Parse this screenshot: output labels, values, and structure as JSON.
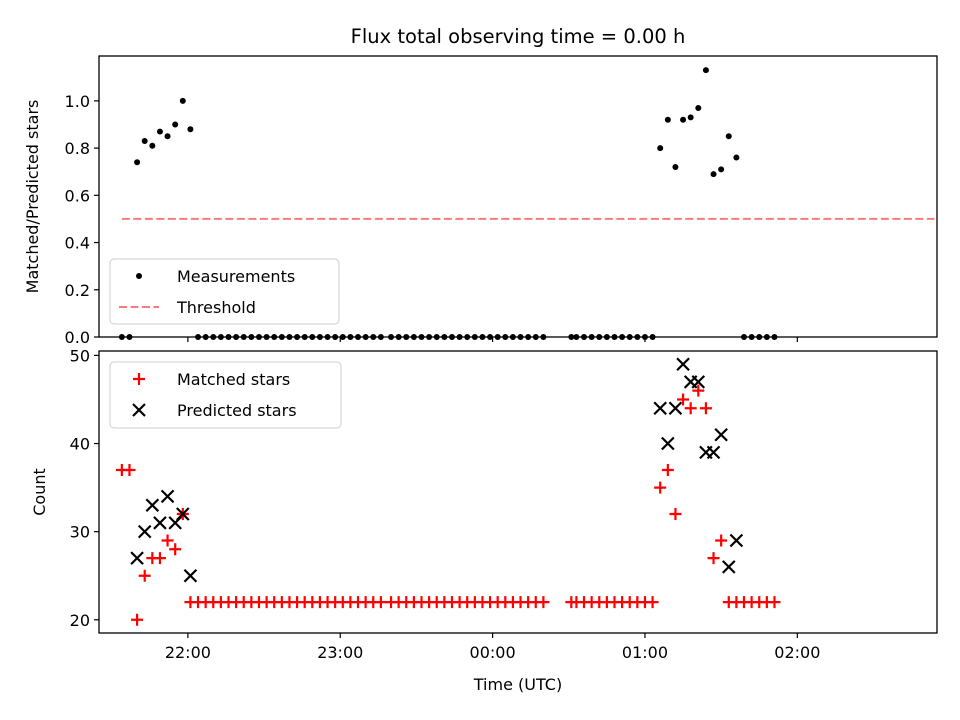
{
  "chart_data": [
    {
      "type": "scatter",
      "title": "Flux total observing time = 0.00 h",
      "xlabel": "",
      "ylabel": "Matched/Predicted stars",
      "ylim": [
        0.0,
        1.19
      ],
      "yticks": [
        "0.0",
        "0.2",
        "0.4",
        "0.6",
        "0.8",
        "1.0"
      ],
      "xlim": [
        "21:25",
        "02:55"
      ],
      "xticks": [
        "22:00",
        "23:00",
        "00:00",
        "01:00",
        "02:00"
      ],
      "legend": {
        "placement": "lower-left",
        "entries": [
          "Measurements",
          "Threshold"
        ]
      },
      "series": [
        {
          "name": "Measurements",
          "marker": "dot",
          "color": "#000000",
          "points": [
            [
              "21:34",
              0.0
            ],
            [
              "21:37",
              0.0
            ],
            [
              "21:40",
              0.74
            ],
            [
              "21:43",
              0.83
            ],
            [
              "21:46",
              0.81
            ],
            [
              "21:49",
              0.87
            ],
            [
              "21:52",
              0.85
            ],
            [
              "21:55",
              0.9
            ],
            [
              "21:58",
              1.0
            ],
            [
              "22:01",
              0.88
            ],
            [
              "22:04",
              0.0
            ],
            [
              "22:07",
              0.0
            ],
            [
              "22:10",
              0.0
            ],
            [
              "22:13",
              0.0
            ],
            [
              "22:16",
              0.0
            ],
            [
              "22:19",
              0.0
            ],
            [
              "22:22",
              0.0
            ],
            [
              "22:25",
              0.0
            ],
            [
              "22:28",
              0.0
            ],
            [
              "22:31",
              0.0
            ],
            [
              "22:34",
              0.0
            ],
            [
              "22:37",
              0.0
            ],
            [
              "22:40",
              0.0
            ],
            [
              "22:43",
              0.0
            ],
            [
              "22:46",
              0.0
            ],
            [
              "22:49",
              0.0
            ],
            [
              "22:52",
              0.0
            ],
            [
              "22:55",
              0.0
            ],
            [
              "22:58",
              0.0
            ],
            [
              "23:01",
              0.0
            ],
            [
              "23:04",
              0.0
            ],
            [
              "23:07",
              0.0
            ],
            [
              "23:10",
              0.0
            ],
            [
              "23:13",
              0.0
            ],
            [
              "23:16",
              0.0
            ],
            [
              "23:20",
              0.0
            ],
            [
              "23:23",
              0.0
            ],
            [
              "23:26",
              0.0
            ],
            [
              "23:29",
              0.0
            ],
            [
              "23:32",
              0.0
            ],
            [
              "23:35",
              0.0
            ],
            [
              "23:38",
              0.0
            ],
            [
              "23:41",
              0.0
            ],
            [
              "23:44",
              0.0
            ],
            [
              "23:47",
              0.0
            ],
            [
              "23:50",
              0.0
            ],
            [
              "23:53",
              0.0
            ],
            [
              "23:56",
              0.0
            ],
            [
              "23:59",
              0.0
            ],
            [
              "00:02",
              0.0
            ],
            [
              "00:05",
              0.0
            ],
            [
              "00:08",
              0.0
            ],
            [
              "00:11",
              0.0
            ],
            [
              "00:14",
              0.0
            ],
            [
              "00:17",
              0.0
            ],
            [
              "00:20",
              0.0
            ],
            [
              "00:31",
              0.0
            ],
            [
              "00:33",
              0.0
            ],
            [
              "00:36",
              0.0
            ],
            [
              "00:39",
              0.0
            ],
            [
              "00:42",
              0.0
            ],
            [
              "00:45",
              0.0
            ],
            [
              "00:48",
              0.0
            ],
            [
              "00:51",
              0.0
            ],
            [
              "00:54",
              0.0
            ],
            [
              "00:57",
              0.0
            ],
            [
              "01:00",
              0.0
            ],
            [
              "01:03",
              0.0
            ],
            [
              "01:06",
              0.8
            ],
            [
              "01:09",
              0.92
            ],
            [
              "01:12",
              0.72
            ],
            [
              "01:15",
              0.92
            ],
            [
              "01:18",
              0.93
            ],
            [
              "01:21",
              0.97
            ],
            [
              "01:24",
              1.13
            ],
            [
              "01:27",
              0.69
            ],
            [
              "01:30",
              0.71
            ],
            [
              "01:33",
              0.85
            ],
            [
              "01:36",
              0.76
            ],
            [
              "01:39",
              0.0
            ],
            [
              "01:42",
              0.0
            ],
            [
              "01:45",
              0.0
            ],
            [
              "01:48",
              0.0
            ],
            [
              "01:51",
              0.0
            ]
          ]
        },
        {
          "name": "Threshold",
          "marker": "dashed-line",
          "color": "#f47c7c",
          "points": [
            [
              "21:34",
              0.5
            ],
            [
              "02:54",
              0.5
            ]
          ]
        }
      ]
    },
    {
      "type": "scatter",
      "title": "",
      "xlabel": "Time (UTC)",
      "ylabel": "Count",
      "ylim": [
        18.5,
        50.5
      ],
      "yticks": [
        "20",
        "30",
        "40",
        "50"
      ],
      "xlim": [
        "21:25",
        "02:55"
      ],
      "xticks": [
        "22:00",
        "23:00",
        "00:00",
        "01:00",
        "02:00"
      ],
      "legend": {
        "placement": "upper-left",
        "entries": [
          "Matched stars",
          "Predicted stars"
        ]
      },
      "series": [
        {
          "name": "Matched stars",
          "marker": "plus",
          "color": "#ff0000",
          "points": [
            [
              "21:34",
              37
            ],
            [
              "21:37",
              37
            ],
            [
              "21:40",
              20
            ],
            [
              "21:43",
              25
            ],
            [
              "21:46",
              27
            ],
            [
              "21:49",
              27
            ],
            [
              "21:52",
              29
            ],
            [
              "21:55",
              28
            ],
            [
              "21:58",
              32
            ],
            [
              "22:01",
              22
            ],
            [
              "22:04",
              22
            ],
            [
              "22:07",
              22
            ],
            [
              "22:10",
              22
            ],
            [
              "22:13",
              22
            ],
            [
              "22:16",
              22
            ],
            [
              "22:19",
              22
            ],
            [
              "22:22",
              22
            ],
            [
              "22:25",
              22
            ],
            [
              "22:28",
              22
            ],
            [
              "22:31",
              22
            ],
            [
              "22:34",
              22
            ],
            [
              "22:37",
              22
            ],
            [
              "22:40",
              22
            ],
            [
              "22:43",
              22
            ],
            [
              "22:46",
              22
            ],
            [
              "22:49",
              22
            ],
            [
              "22:52",
              22
            ],
            [
              "22:55",
              22
            ],
            [
              "22:58",
              22
            ],
            [
              "23:01",
              22
            ],
            [
              "23:04",
              22
            ],
            [
              "23:07",
              22
            ],
            [
              "23:10",
              22
            ],
            [
              "23:13",
              22
            ],
            [
              "23:16",
              22
            ],
            [
              "23:20",
              22
            ],
            [
              "23:23",
              22
            ],
            [
              "23:26",
              22
            ],
            [
              "23:29",
              22
            ],
            [
              "23:32",
              22
            ],
            [
              "23:35",
              22
            ],
            [
              "23:38",
              22
            ],
            [
              "23:41",
              22
            ],
            [
              "23:44",
              22
            ],
            [
              "23:47",
              22
            ],
            [
              "23:50",
              22
            ],
            [
              "23:53",
              22
            ],
            [
              "23:56",
              22
            ],
            [
              "23:59",
              22
            ],
            [
              "00:02",
              22
            ],
            [
              "00:05",
              22
            ],
            [
              "00:08",
              22
            ],
            [
              "00:11",
              22
            ],
            [
              "00:14",
              22
            ],
            [
              "00:17",
              22
            ],
            [
              "00:20",
              22
            ],
            [
              "00:31",
              22
            ],
            [
              "00:33",
              22
            ],
            [
              "00:36",
              22
            ],
            [
              "00:39",
              22
            ],
            [
              "00:42",
              22
            ],
            [
              "00:45",
              22
            ],
            [
              "00:48",
              22
            ],
            [
              "00:51",
              22
            ],
            [
              "00:54",
              22
            ],
            [
              "00:57",
              22
            ],
            [
              "01:00",
              22
            ],
            [
              "01:03",
              22
            ],
            [
              "01:06",
              35
            ],
            [
              "01:09",
              37
            ],
            [
              "01:12",
              32
            ],
            [
              "01:15",
              45
            ],
            [
              "01:18",
              44
            ],
            [
              "01:21",
              46
            ],
            [
              "01:24",
              44
            ],
            [
              "01:27",
              27
            ],
            [
              "01:30",
              29
            ],
            [
              "01:33",
              22
            ],
            [
              "01:36",
              22
            ],
            [
              "01:39",
              22
            ],
            [
              "01:42",
              22
            ],
            [
              "01:45",
              22
            ],
            [
              "01:48",
              22
            ],
            [
              "01:51",
              22
            ]
          ]
        },
        {
          "name": "Predicted stars",
          "marker": "x",
          "color": "#000000",
          "points": [
            [
              "21:40",
              27
            ],
            [
              "21:43",
              30
            ],
            [
              "21:46",
              33
            ],
            [
              "21:49",
              31
            ],
            [
              "21:52",
              34
            ],
            [
              "21:55",
              31
            ],
            [
              "21:58",
              32
            ],
            [
              "22:01",
              25
            ],
            [
              "01:06",
              44
            ],
            [
              "01:09",
              40
            ],
            [
              "01:12",
              44
            ],
            [
              "01:15",
              49
            ],
            [
              "01:18",
              47
            ],
            [
              "01:21",
              47
            ],
            [
              "01:24",
              39
            ],
            [
              "01:27",
              39
            ],
            [
              "01:30",
              41
            ],
            [
              "01:33",
              26
            ],
            [
              "01:36",
              29
            ]
          ]
        }
      ]
    }
  ]
}
